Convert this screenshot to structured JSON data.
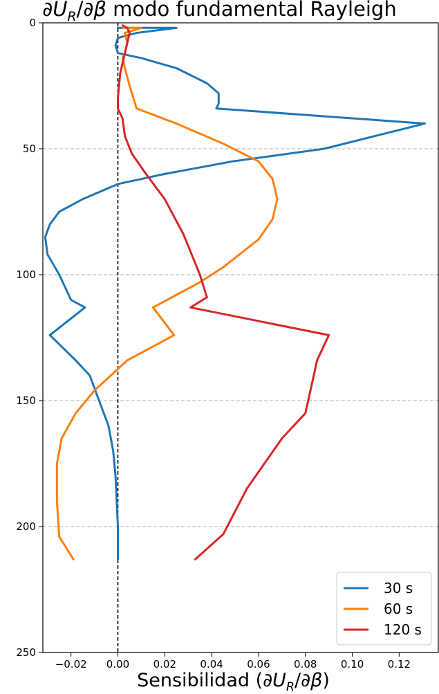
{
  "chart_data": {
    "type": "line",
    "title": "∂U_R/∂β modo fundamental Rayleigh",
    "xlabel": "Sensibilidad (∂U_R/∂β)",
    "ylabel": "",
    "xlim": [
      -0.032,
      0.137
    ],
    "ylim": [
      250,
      0
    ],
    "x_ticks": [
      "−0.02",
      "0.00",
      "0.02",
      "0.04",
      "0.06",
      "0.08",
      "0.10",
      "0.12"
    ],
    "x_tick_values": [
      -0.02,
      0.0,
      0.02,
      0.04,
      0.06,
      0.08,
      0.1,
      0.12
    ],
    "y_ticks": [
      "0",
      "50",
      "100",
      "150",
      "200",
      "250"
    ],
    "y_tick_values": [
      0,
      50,
      100,
      150,
      200,
      250
    ],
    "grid": "horizontal dashed",
    "reference_line_x": 0.0,
    "legend_position": "bottom-right",
    "series": [
      {
        "name": "30 s",
        "color": "#1f77b4",
        "points": [
          [
            0.0,
            2
          ],
          [
            0.025,
            2
          ],
          [
            0.008,
            4
          ],
          [
            0.0,
            6
          ],
          [
            -0.001,
            9
          ],
          [
            0.0,
            12
          ],
          [
            0.01,
            14
          ],
          [
            0.025,
            18
          ],
          [
            0.038,
            24
          ],
          [
            0.043,
            28
          ],
          [
            0.043,
            32
          ],
          [
            0.042,
            34
          ],
          [
            0.131,
            40
          ],
          [
            0.088,
            50
          ],
          [
            0.049,
            55
          ],
          [
            0.02,
            60
          ],
          [
            0.0,
            64
          ],
          [
            -0.015,
            70
          ],
          [
            -0.025,
            75
          ],
          [
            -0.029,
            80
          ],
          [
            -0.031,
            85
          ],
          [
            -0.03,
            92
          ],
          [
            -0.025,
            100
          ],
          [
            -0.02,
            110
          ],
          [
            -0.014,
            113
          ],
          [
            -0.029,
            124
          ],
          [
            -0.018,
            134
          ],
          [
            -0.012,
            140
          ],
          [
            -0.008,
            150
          ],
          [
            -0.004,
            160
          ],
          [
            -0.002,
            170
          ],
          [
            -0.001,
            180
          ],
          [
            0.0,
            200
          ],
          [
            0.0,
            213
          ]
        ]
      },
      {
        "name": "60 s",
        "color": "#ff7f0e",
        "points": [
          [
            0.002,
            2
          ],
          [
            0.01,
            2
          ],
          [
            0.003,
            4
          ],
          [
            0.004,
            8
          ],
          [
            0.003,
            12
          ],
          [
            0.002,
            14
          ],
          [
            0.003,
            18
          ],
          [
            0.005,
            25
          ],
          [
            0.008,
            34
          ],
          [
            0.025,
            40
          ],
          [
            0.045,
            48
          ],
          [
            0.06,
            55
          ],
          [
            0.066,
            62
          ],
          [
            0.068,
            70
          ],
          [
            0.066,
            78
          ],
          [
            0.06,
            86
          ],
          [
            0.045,
            97
          ],
          [
            0.035,
            103
          ],
          [
            0.025,
            108
          ],
          [
            0.015,
            113
          ],
          [
            0.024,
            124
          ],
          [
            0.004,
            134
          ],
          [
            -0.01,
            146
          ],
          [
            -0.018,
            155
          ],
          [
            -0.024,
            165
          ],
          [
            -0.026,
            175
          ],
          [
            -0.026,
            190
          ],
          [
            -0.025,
            204
          ],
          [
            -0.019,
            213
          ]
        ]
      },
      {
        "name": "120 s",
        "color": "#d62728",
        "points": [
          [
            0.002,
            1
          ],
          [
            0.004,
            2
          ],
          [
            0.005,
            4
          ],
          [
            0.004,
            8
          ],
          [
            0.003,
            12
          ],
          [
            0.001,
            20
          ],
          [
            0.0,
            30
          ],
          [
            0.0,
            34
          ],
          [
            0.002,
            38
          ],
          [
            0.003,
            45
          ],
          [
            0.006,
            52
          ],
          [
            0.012,
            60
          ],
          [
            0.02,
            70
          ],
          [
            0.028,
            84
          ],
          [
            0.035,
            100
          ],
          [
            0.038,
            109
          ],
          [
            0.031,
            113
          ],
          [
            0.09,
            124
          ],
          [
            0.085,
            134
          ],
          [
            0.08,
            155
          ],
          [
            0.07,
            165
          ],
          [
            0.055,
            185
          ],
          [
            0.045,
            203
          ],
          [
            0.033,
            213
          ]
        ]
      }
    ]
  }
}
